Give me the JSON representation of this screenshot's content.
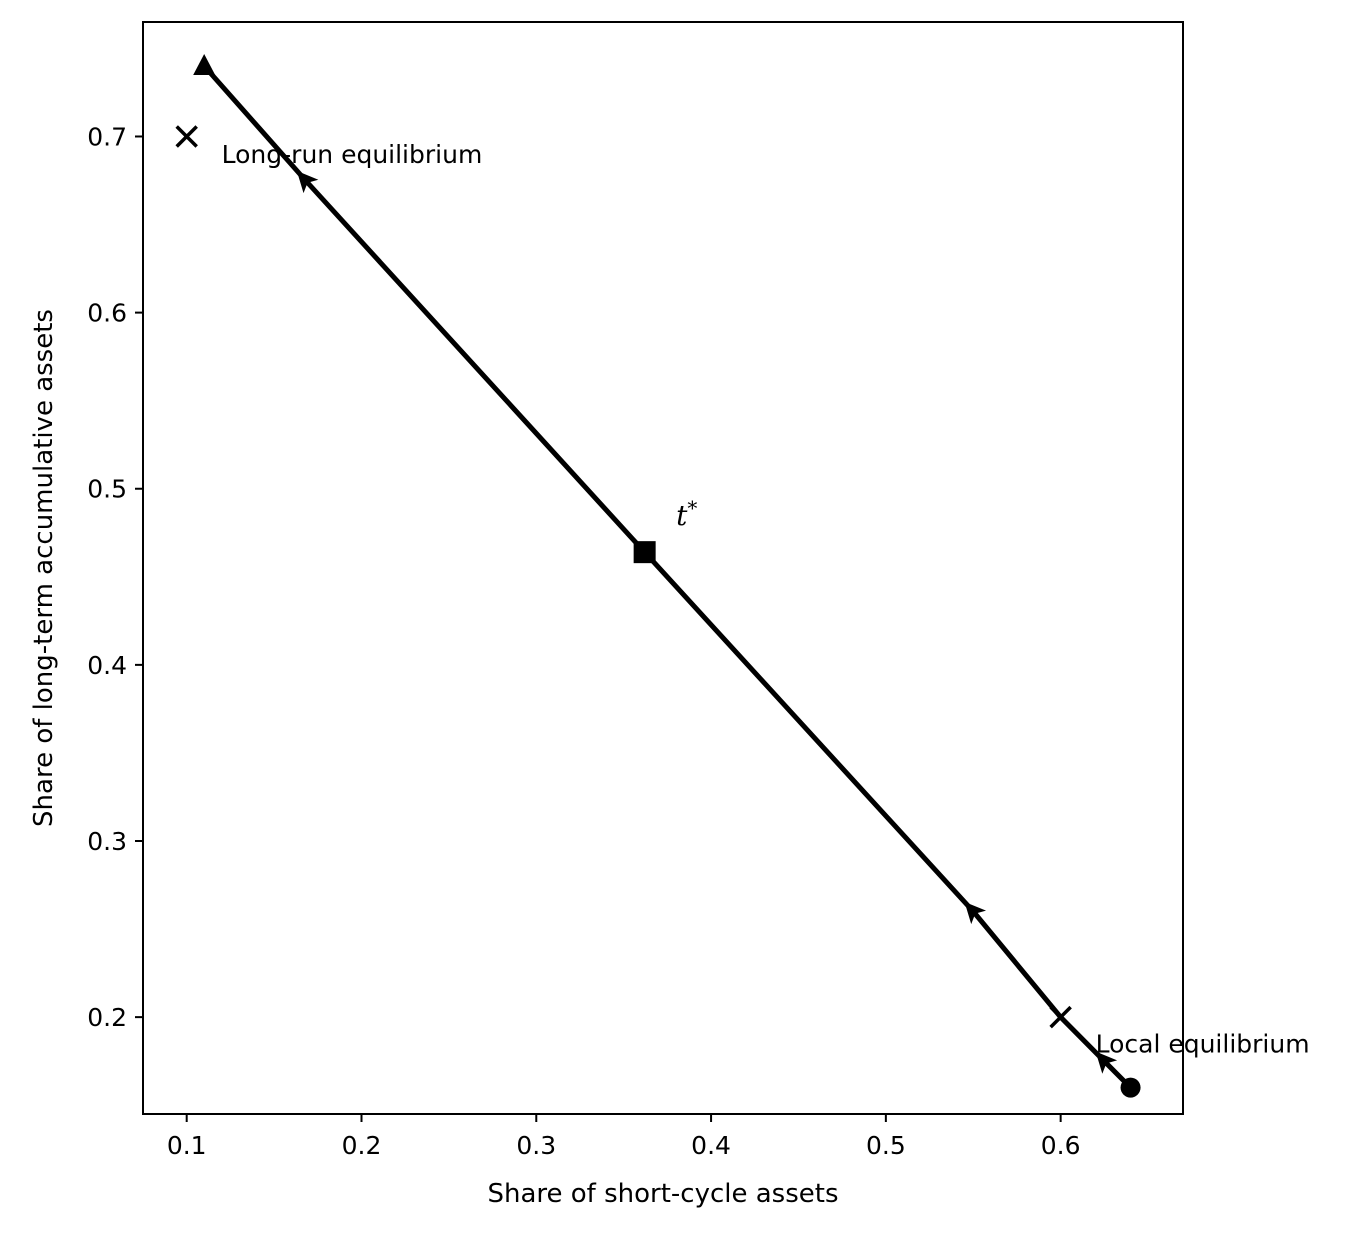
{
  "chart_data": {
    "type": "line",
    "title": "",
    "xlabel": "Share of short-cycle assets",
    "ylabel": "Share of long-term accumulative assets",
    "xlim": [
      0.075,
      0.67
    ],
    "ylim": [
      0.145,
      0.765
    ],
    "xticks": [
      "0.1",
      "0.2",
      "0.3",
      "0.4",
      "0.5",
      "0.6"
    ],
    "yticks": [
      "0.2",
      "0.3",
      "0.4",
      "0.5",
      "0.6",
      "0.7"
    ],
    "grid": false,
    "legend": "none",
    "line_color": "#000000",
    "series": [
      {
        "x": [
          0.64,
          0.625,
          0.6,
          0.55,
          0.362,
          0.168,
          0.11
        ],
        "y": [
          0.16,
          0.175,
          0.2,
          0.26,
          0.464,
          0.675,
          0.74
        ]
      }
    ],
    "markers": [
      {
        "kind": "circle",
        "x": 0.64,
        "y": 0.16
      },
      {
        "kind": "square",
        "x": 0.362,
        "y": 0.464
      },
      {
        "kind": "triangle",
        "x": 0.11,
        "y": 0.74
      },
      {
        "kind": "arrow",
        "x": 0.625,
        "y": 0.175
      },
      {
        "kind": "arrow",
        "x": 0.55,
        "y": 0.26
      },
      {
        "kind": "arrow",
        "x": 0.168,
        "y": 0.675
      },
      {
        "kind": "cross",
        "x": 0.6,
        "y": 0.2
      },
      {
        "kind": "cross",
        "x": 0.1,
        "y": 0.7
      }
    ],
    "annotations": [
      {
        "text": "Long-run equilibrium",
        "x": 0.12,
        "y": 0.69,
        "style": "normal"
      },
      {
        "text": "Local equilibrium",
        "x": 0.62,
        "y": 0.185,
        "style": "normal"
      },
      {
        "text": "t*",
        "x": 0.38,
        "y": 0.485,
        "style": "italic"
      }
    ]
  }
}
